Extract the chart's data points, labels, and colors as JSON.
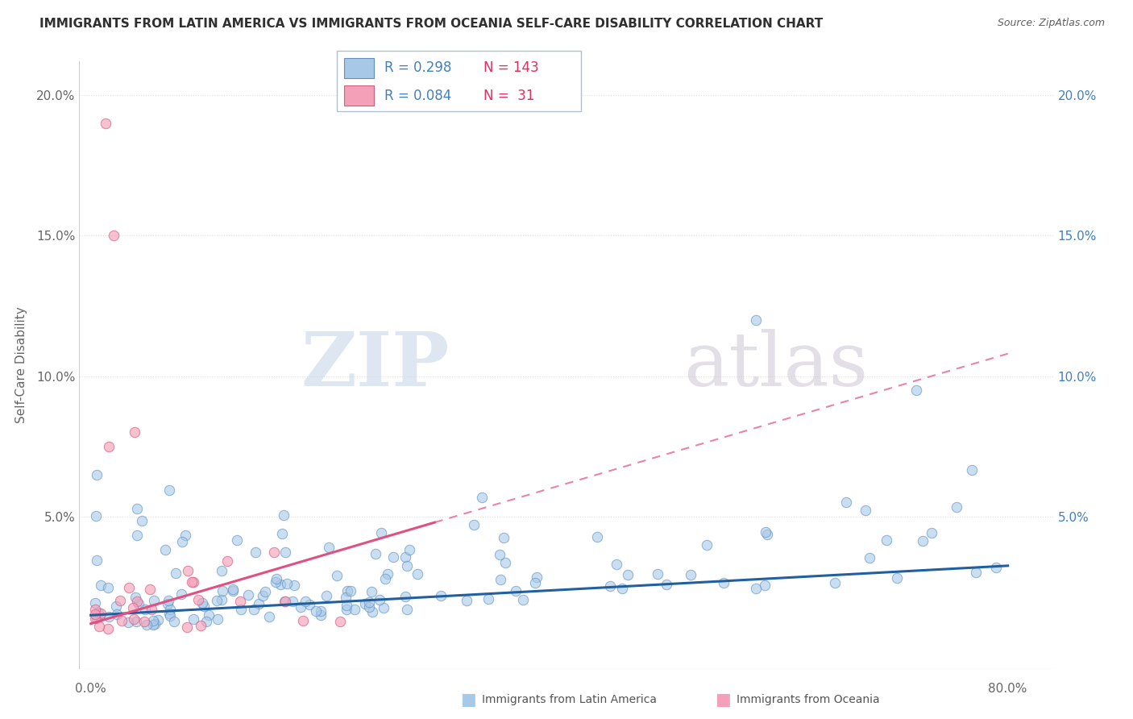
{
  "title": "IMMIGRANTS FROM LATIN AMERICA VS IMMIGRANTS FROM OCEANIA SELF-CARE DISABILITY CORRELATION CHART",
  "source": "Source: ZipAtlas.com",
  "ylabel": "Self-Care Disability",
  "xlim": [
    -0.01,
    0.84
  ],
  "ylim": [
    -0.004,
    0.212
  ],
  "yticks": [
    0.0,
    0.05,
    0.1,
    0.15,
    0.2
  ],
  "ytick_labels_left": [
    "",
    "5.0%",
    "10.0%",
    "15.0%",
    "20.0%"
  ],
  "ytick_labels_right": [
    "",
    "5.0%",
    "10.0%",
    "15.0%",
    "20.0%"
  ],
  "watermark_zip": "ZIP",
  "watermark_atlas": "atlas",
  "legend_r1": "R = 0.298",
  "legend_n1": "N = 143",
  "legend_r2": "R = 0.084",
  "legend_n2": "N =  31",
  "color_blue": "#a8c8e8",
  "color_pink": "#f4a0b8",
  "color_blue_line": "#2060a0",
  "color_pink_line": "#e05080",
  "color_grid": "#e0e0e0",
  "color_title": "#303030",
  "color_source": "#606060",
  "color_right_axis": "#4080c0"
}
